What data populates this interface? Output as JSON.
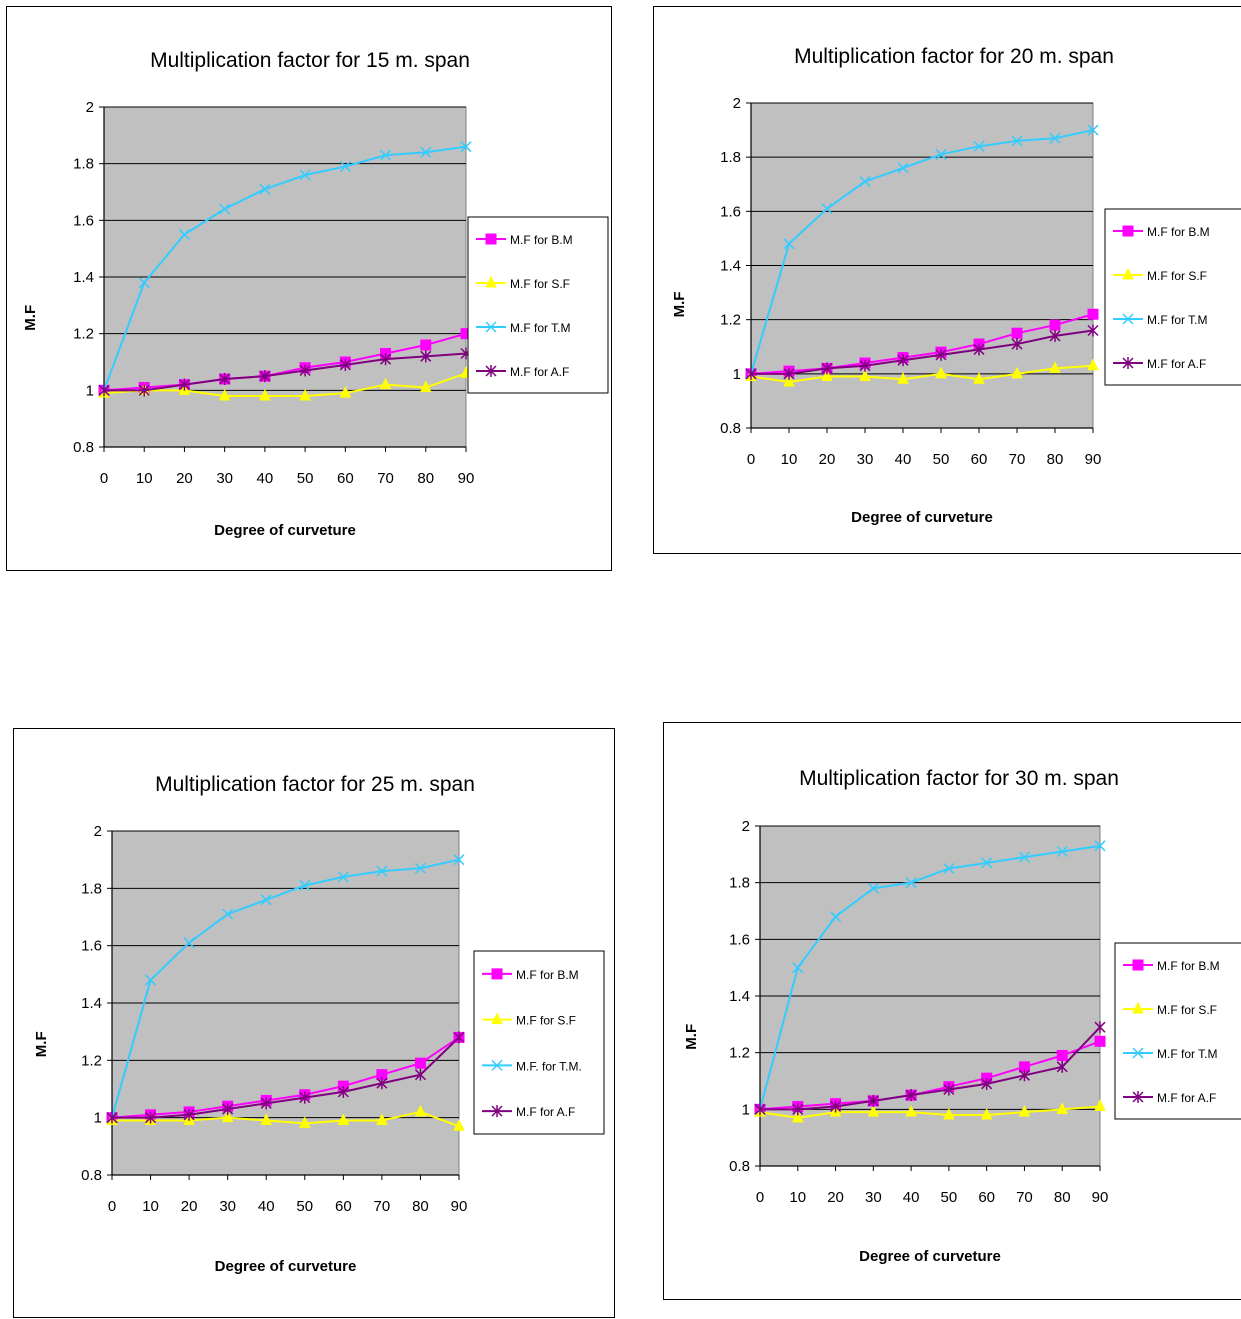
{
  "chart_data": [
    {
      "type": "line",
      "title": "Multiplication factor for 15 m. span",
      "xlabel": "Degree of curveture",
      "ylabel": "M.F",
      "x": [
        0,
        10,
        20,
        30,
        40,
        50,
        60,
        70,
        80,
        90
      ],
      "x_ticks": [
        "0",
        "10",
        "20",
        "30",
        "40",
        "50",
        "60",
        "70",
        "80",
        "90"
      ],
      "ylim": [
        0.8,
        2
      ],
      "y_ticks": [
        "0.8",
        "1",
        "1.2",
        "1.4",
        "1.6",
        "1.8",
        "2"
      ],
      "grid": true,
      "legend": "right",
      "series": [
        {
          "name": "M.F for B.M",
          "color": "#ff00ff",
          "marker": "square",
          "values": [
            1.0,
            1.01,
            1.02,
            1.04,
            1.05,
            1.08,
            1.1,
            1.13,
            1.16,
            1.2
          ]
        },
        {
          "name": "M.F for S.F",
          "color": "#ffff00",
          "marker": "triangle",
          "values": [
            0.99,
            1.0,
            1.0,
            0.98,
            0.98,
            0.98,
            0.99,
            1.02,
            1.01,
            1.06
          ]
        },
        {
          "name": "M.F for T.M",
          "color": "#33ccff",
          "marker": "x",
          "values": [
            1.0,
            1.38,
            1.55,
            1.64,
            1.71,
            1.76,
            1.79,
            1.83,
            1.84,
            1.86
          ]
        },
        {
          "name": "M.F for A.F",
          "color": "#800080",
          "marker": "star",
          "values": [
            1.0,
            1.0,
            1.02,
            1.04,
            1.05,
            1.07,
            1.09,
            1.11,
            1.12,
            1.13
          ]
        }
      ]
    },
    {
      "type": "line",
      "title": "Multiplication factor for 20 m. span",
      "xlabel": "Degree of curveture",
      "ylabel": "M.F",
      "x": [
        0,
        10,
        20,
        30,
        40,
        50,
        60,
        70,
        80,
        90
      ],
      "x_ticks": [
        "0",
        "10",
        "20",
        "30",
        "40",
        "50",
        "60",
        "70",
        "80",
        "90"
      ],
      "ylim": [
        0.8,
        2
      ],
      "y_ticks": [
        "0.8",
        "1",
        "1.2",
        "1.4",
        "1.6",
        "1.8",
        "2"
      ],
      "grid": true,
      "legend": "right",
      "series": [
        {
          "name": "M.F for B.M",
          "color": "#ff00ff",
          "marker": "square",
          "values": [
            1.0,
            1.01,
            1.02,
            1.04,
            1.06,
            1.08,
            1.11,
            1.15,
            1.18,
            1.22
          ]
        },
        {
          "name": "M.F for S.F",
          "color": "#ffff00",
          "marker": "triangle",
          "values": [
            0.99,
            0.97,
            0.99,
            0.99,
            0.98,
            1.0,
            0.98,
            1.0,
            1.02,
            1.03
          ]
        },
        {
          "name": "M.F for T.M",
          "color": "#33ccff",
          "marker": "x",
          "values": [
            1.0,
            1.48,
            1.61,
            1.71,
            1.76,
            1.81,
            1.84,
            1.86,
            1.87,
            1.9
          ]
        },
        {
          "name": "M.F for A.F",
          "color": "#800080",
          "marker": "star",
          "values": [
            1.0,
            1.0,
            1.02,
            1.03,
            1.05,
            1.07,
            1.09,
            1.11,
            1.14,
            1.16
          ]
        }
      ]
    },
    {
      "type": "line",
      "title": "Multiplication factor for 25 m. span",
      "xlabel": "Degree of curveture",
      "ylabel": "M.F",
      "x": [
        0,
        10,
        20,
        30,
        40,
        50,
        60,
        70,
        80,
        90
      ],
      "x_ticks": [
        "0",
        "10",
        "20",
        "30",
        "40",
        "50",
        "60",
        "70",
        "80",
        "90"
      ],
      "ylim": [
        0.8,
        2
      ],
      "y_ticks": [
        "0.8",
        "1",
        "1.2",
        "1.4",
        "1.6",
        "1.8",
        "2"
      ],
      "grid": true,
      "legend": "right",
      "series": [
        {
          "name": "M.F for B.M",
          "color": "#ff00ff",
          "marker": "square",
          "values": [
            1.0,
            1.01,
            1.02,
            1.04,
            1.06,
            1.08,
            1.11,
            1.15,
            1.19,
            1.28
          ]
        },
        {
          "name": "M.F for S.F",
          "color": "#ffff00",
          "marker": "triangle",
          "values": [
            0.99,
            0.99,
            0.99,
            1.0,
            0.99,
            0.98,
            0.99,
            0.99,
            1.02,
            0.97
          ]
        },
        {
          "name": "M.F. for T.M.",
          "color": "#33ccff",
          "marker": "x",
          "values": [
            1.0,
            1.48,
            1.61,
            1.71,
            1.76,
            1.81,
            1.84,
            1.86,
            1.87,
            1.9
          ]
        },
        {
          "name": "M.F for A.F",
          "color": "#800080",
          "marker": "star",
          "values": [
            1.0,
            1.0,
            1.01,
            1.03,
            1.05,
            1.07,
            1.09,
            1.12,
            1.15,
            1.28
          ]
        }
      ]
    },
    {
      "type": "line",
      "title": "Multiplication factor for 30 m. span",
      "xlabel": "Degree of curveture",
      "ylabel": "M.F",
      "x": [
        0,
        10,
        20,
        30,
        40,
        50,
        60,
        70,
        80,
        90
      ],
      "x_ticks": [
        "0",
        "10",
        "20",
        "30",
        "40",
        "50",
        "60",
        "70",
        "80",
        "90"
      ],
      "ylim": [
        0.8,
        2
      ],
      "y_ticks": [
        "0.8",
        "1",
        "1.2",
        "1.4",
        "1.6",
        "1.8",
        "2"
      ],
      "grid": true,
      "legend": "right",
      "series": [
        {
          "name": "M.F for B.M",
          "color": "#ff00ff",
          "marker": "square",
          "values": [
            1.0,
            1.01,
            1.02,
            1.03,
            1.05,
            1.08,
            1.11,
            1.15,
            1.19,
            1.24
          ]
        },
        {
          "name": "M.F for S.F",
          "color": "#ffff00",
          "marker": "triangle",
          "values": [
            0.99,
            0.97,
            0.99,
            0.99,
            0.99,
            0.98,
            0.98,
            0.99,
            1.0,
            1.01
          ]
        },
        {
          "name": "M.F for T.M",
          "color": "#33ccff",
          "marker": "x",
          "values": [
            1.0,
            1.5,
            1.68,
            1.78,
            1.8,
            1.85,
            1.87,
            1.89,
            1.91,
            1.93
          ]
        },
        {
          "name": "M.F for A.F",
          "color": "#800080",
          "marker": "star",
          "values": [
            1.0,
            1.0,
            1.01,
            1.03,
            1.05,
            1.07,
            1.09,
            1.12,
            1.15,
            1.29
          ]
        }
      ]
    }
  ]
}
